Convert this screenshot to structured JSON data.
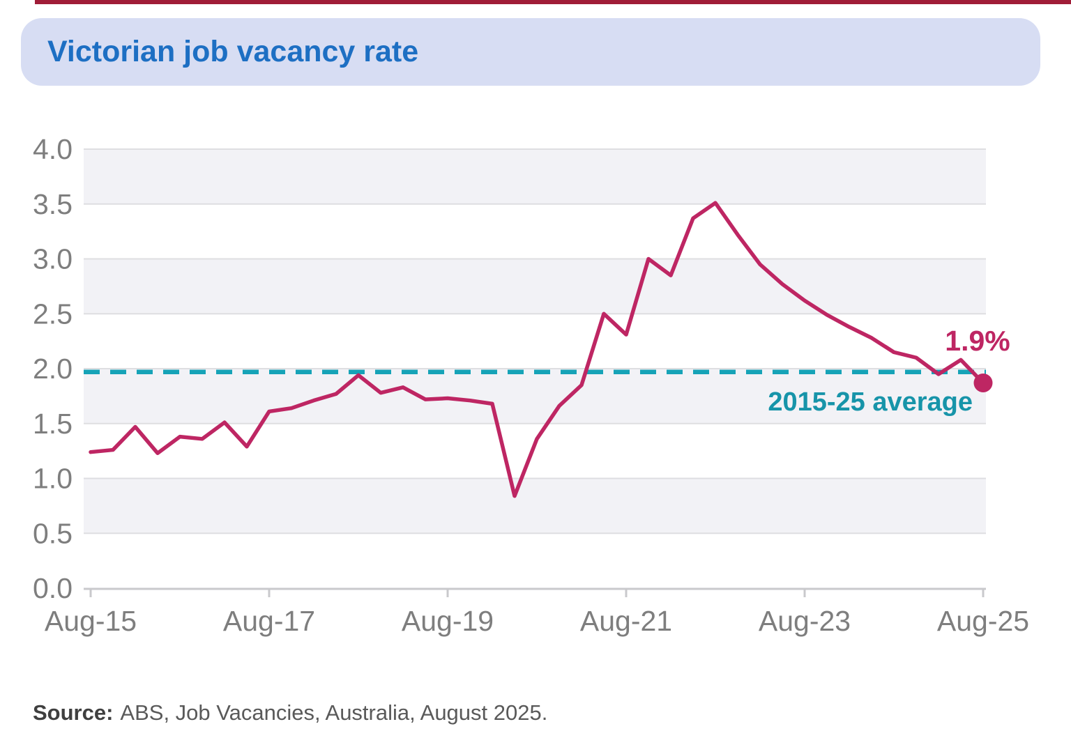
{
  "title": "Victorian job vacancy rate",
  "source": {
    "label": "Source:",
    "text": "ABS, Job Vacancies, Australia, August 2025."
  },
  "annotations": {
    "last_value_label": "1.9%",
    "average_label": "2015-25 average"
  },
  "colors": {
    "banner_bg": "#D7DDF3",
    "title_blue": "#1D6FC3",
    "series_crimson": "#BE2663",
    "average_teal_line": "#16A3B7",
    "average_teal_text": "#1794A9",
    "band_gray": "#F2F2F6",
    "gridline_gray": "#DEDEE1",
    "axis_gray": "#C9C9CC",
    "tick_text_gray": "#7E7E7E",
    "top_strip_red": "#A01D38"
  },
  "chart_data": {
    "type": "line",
    "title": "Victorian job vacancy rate",
    "unit": "%",
    "x": [
      "Aug-15",
      "Nov-15",
      "Feb-16",
      "May-16",
      "Aug-16",
      "Nov-16",
      "Feb-17",
      "May-17",
      "Aug-17",
      "Nov-17",
      "Feb-18",
      "May-18",
      "Aug-18",
      "Nov-18",
      "Feb-19",
      "May-19",
      "Aug-19",
      "Nov-19",
      "Feb-20",
      "May-20",
      "Aug-20",
      "Nov-20",
      "Feb-21",
      "May-21",
      "Aug-21",
      "Nov-21",
      "Feb-22",
      "May-22",
      "Aug-22",
      "Nov-22",
      "Feb-23",
      "May-23",
      "Aug-23",
      "Nov-23",
      "Feb-24",
      "May-24",
      "Aug-24",
      "Nov-24",
      "Feb-25",
      "May-25",
      "Aug-25"
    ],
    "values": [
      1.24,
      1.26,
      1.47,
      1.23,
      1.38,
      1.36,
      1.51,
      1.29,
      1.61,
      1.64,
      1.71,
      1.77,
      1.94,
      1.78,
      1.83,
      1.72,
      1.73,
      1.71,
      1.68,
      0.84,
      1.36,
      1.66,
      1.85,
      2.5,
      2.31,
      3.0,
      2.85,
      3.37,
      3.51,
      3.22,
      2.95,
      2.77,
      2.62,
      2.49,
      2.38,
      2.28,
      2.15,
      2.1,
      1.95,
      2.08,
      1.87
    ],
    "x_tick_labels": [
      {
        "label": "Aug-15",
        "index": 0
      },
      {
        "label": "Aug-17",
        "index": 8
      },
      {
        "label": "Aug-19",
        "index": 16
      },
      {
        "label": "Aug-21",
        "index": 24
      },
      {
        "label": "Aug-23",
        "index": 32
      },
      {
        "label": "Aug-25",
        "index": 40
      }
    ],
    "y_tick_labels": [
      "0.0",
      "0.5",
      "1.0",
      "1.5",
      "2.0",
      "2.5",
      "3.0",
      "3.5",
      "4.0"
    ],
    "y_tick_values": [
      0,
      0.5,
      1.0,
      1.5,
      2.0,
      2.5,
      3.0,
      3.5,
      4.0
    ],
    "ylim": [
      0,
      4
    ],
    "average_line_value": 1.97,
    "average_line_label": "2015-25 average",
    "last_point_label": "1.9%",
    "grid": "horizontal-bands-alternating",
    "legend": "none"
  }
}
